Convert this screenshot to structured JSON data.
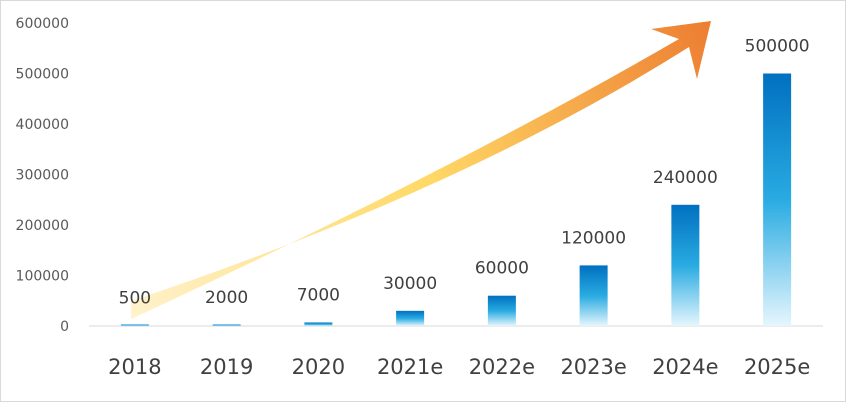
{
  "chart_data": {
    "type": "bar",
    "title": "",
    "xlabel": "",
    "ylabel": "",
    "categories": [
      "2018",
      "2019",
      "2020",
      "2021e",
      "2022e",
      "2023e",
      "2024e",
      "2025e"
    ],
    "values": [
      500,
      2000,
      7000,
      30000,
      60000,
      120000,
      240000,
      500000
    ],
    "data_labels": [
      "500",
      "2000",
      "7000",
      "30000",
      "60000",
      "120000",
      "240000",
      "500000"
    ],
    "ylim": [
      0,
      600000
    ],
    "yticks": [
      0,
      100000,
      200000,
      300000,
      400000,
      500000,
      600000
    ],
    "ytick_labels": [
      "0",
      "100000",
      "200000",
      "300000",
      "400000",
      "500000",
      "600000"
    ],
    "grid": false,
    "legend": "none",
    "colors": {
      "bar_top": "#0070c0",
      "bar_mid": "#29abe2",
      "bar_bottom": "#e6f6fd",
      "arrow_start": "#fff2cc",
      "arrow_mid": "#ffd966",
      "arrow_end": "#ed7d31",
      "axis": "#d9d9d9"
    },
    "decoration": "growth-arrow-icon"
  }
}
